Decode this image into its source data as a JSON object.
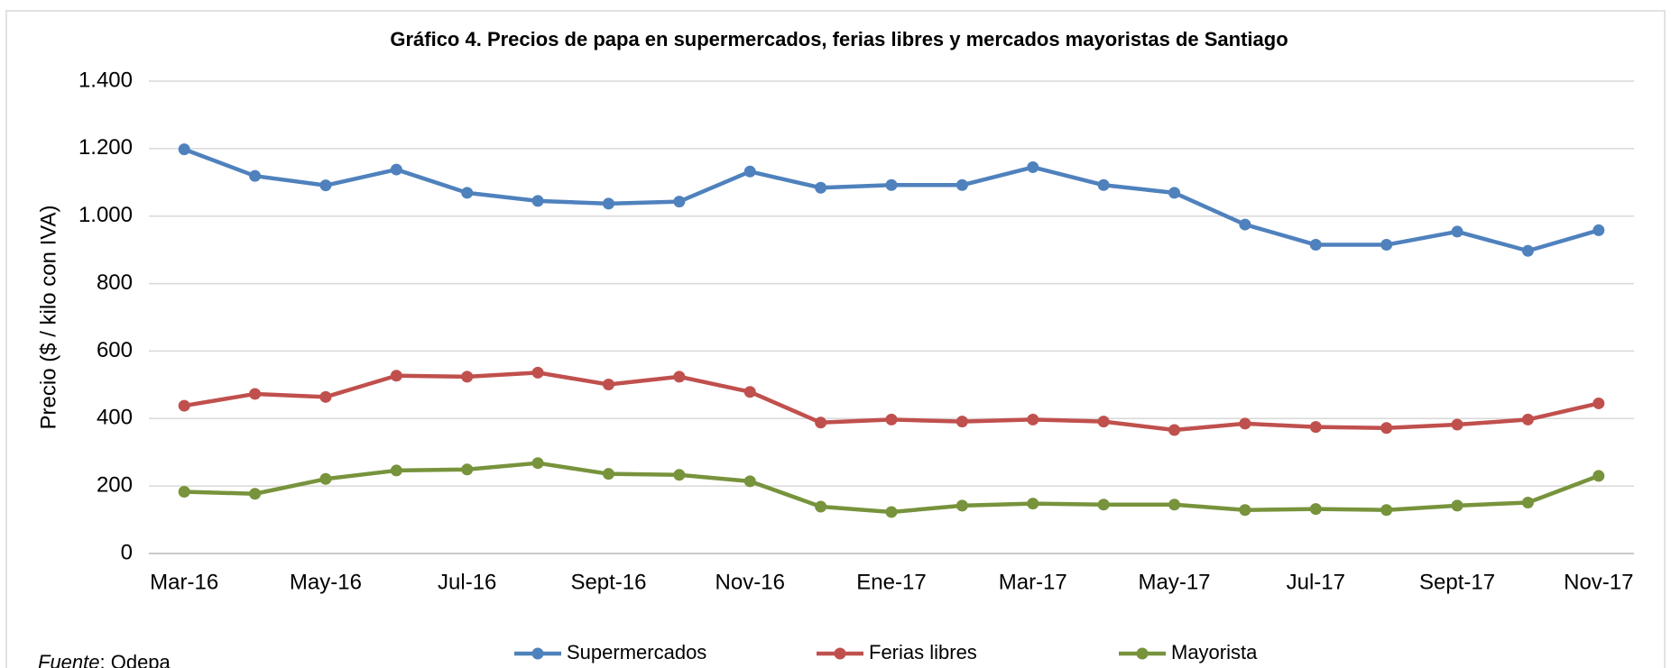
{
  "chart_data": {
    "type": "line",
    "title": "Gráfico 4. Precios de papa en supermercados, ferias libres y mercados mayoristas de Santiago",
    "y_label": "Precio ($ / kilo con IVA)",
    "categories": [
      "Mar-16",
      null,
      "May-16",
      null,
      "Jul-16",
      null,
      "Sept-16",
      null,
      "Nov-16",
      null,
      "Ene-17",
      null,
      "Mar-17",
      null,
      "May-17",
      null,
      "Jul-17",
      null,
      "Sept-17",
      null,
      "Nov-17"
    ],
    "series": [
      {
        "name": "Supermercados",
        "color": "#4f81bd",
        "values": [
          1198,
          1119,
          1091,
          1138,
          1069,
          1045,
          1037,
          1043,
          1132,
          1084,
          1092,
          1092,
          1145,
          1092,
          1069,
          975,
          915,
          915,
          954,
          897,
          958
        ]
      },
      {
        "name": "Ferias libres",
        "color": "#c0504d",
        "values": [
          438,
          473,
          464,
          527,
          524,
          536,
          501,
          524,
          479,
          388,
          397,
          391,
          397,
          391,
          366,
          385,
          375,
          372,
          382,
          397,
          445
        ]
      },
      {
        "name": "Mayorista",
        "color": "#77933c",
        "values": [
          183,
          177,
          221,
          246,
          249,
          268,
          236,
          233,
          214,
          139,
          123,
          142,
          148,
          145,
          145,
          129,
          132,
          129,
          142,
          151,
          230
        ]
      }
    ],
    "ylim": [
      0,
      1400
    ],
    "yticks": [
      0,
      200,
      400,
      600,
      800,
      {
        "value": 1000,
        "label": "1.000"
      },
      {
        "value": 1200,
        "label": "1.200"
      },
      {
        "value": 1400,
        "label": "1.400"
      }
    ],
    "grid": true,
    "legend": "bottom",
    "source": {
      "label": "Fuente",
      "text": ": Odepa"
    }
  }
}
